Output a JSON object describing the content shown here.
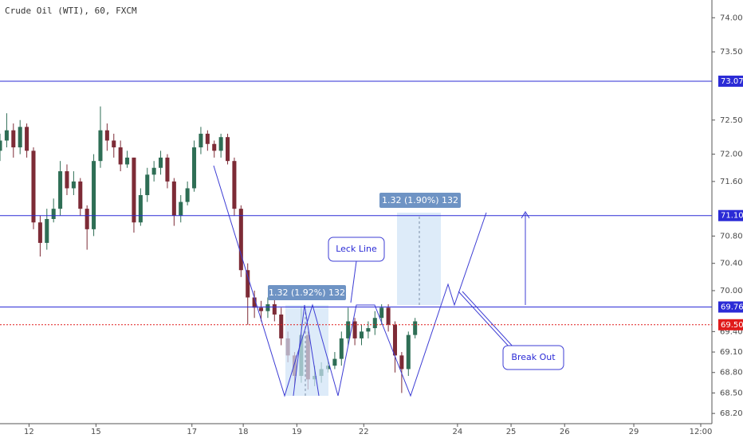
{
  "chart_data": {
    "type": "candlestick",
    "title": "Crude Oil (WTI), 60, FXCM",
    "up_color": "#2e6e55",
    "down_color": "#7d2b36",
    "ylim": [
      68.05,
      74.26
    ],
    "xlim": [
      0,
      319
    ],
    "yticks": [
      {
        "value": 74.0,
        "label": "74.00"
      },
      {
        "value": 73.5,
        "label": "73.50"
      },
      {
        "value": 72.5,
        "label": "72.50"
      },
      {
        "value": 72.0,
        "label": "72.00"
      },
      {
        "value": 71.6,
        "label": "71.60"
      },
      {
        "value": 70.8,
        "label": "70.80"
      },
      {
        "value": 70.4,
        "label": "70.40"
      },
      {
        "value": 70.0,
        "label": "70.00"
      },
      {
        "value": 69.4,
        "label": "69.40"
      },
      {
        "value": 69.1,
        "label": "69.10"
      },
      {
        "value": 68.8,
        "label": "68.80"
      },
      {
        "value": 68.5,
        "label": "68.50"
      },
      {
        "value": 68.2,
        "label": "68.20"
      }
    ],
    "xticks": [
      {
        "value": 13,
        "label": "12"
      },
      {
        "value": 43,
        "label": "15"
      },
      {
        "value": 86,
        "label": "17"
      },
      {
        "value": 109,
        "label": "18"
      },
      {
        "value": 133,
        "label": "19"
      },
      {
        "value": 163,
        "label": "22"
      },
      {
        "value": 205,
        "label": "24"
      },
      {
        "value": 229,
        "label": "25"
      },
      {
        "value": 253,
        "label": "26"
      },
      {
        "value": 284,
        "label": "29"
      },
      {
        "value": 314,
        "label": "12:00"
      }
    ],
    "levels": [
      {
        "value": 73.07,
        "label": "73.07",
        "color": "#2b2bd6",
        "style": "solid"
      },
      {
        "value": 71.1,
        "label": "71.10",
        "color": "#2b2bd6",
        "style": "solid"
      },
      {
        "value": 69.76,
        "label": "69.76",
        "color": "#2b2bd6",
        "style": "solid"
      },
      {
        "value": 69.5,
        "label": "69.50",
        "color": "#e01b1b",
        "style": "dotted"
      }
    ],
    "x": [
      0,
      3,
      6,
      9,
      12,
      15,
      18,
      21,
      24,
      27,
      30,
      33,
      36,
      39,
      42,
      45,
      48,
      51,
      54,
      57,
      60,
      63,
      66,
      69,
      72,
      75,
      78,
      81,
      84,
      87,
      90,
      93,
      96,
      99,
      102,
      105,
      108,
      111,
      114,
      117,
      120,
      123,
      126,
      129,
      132,
      135,
      138,
      141,
      144,
      147,
      150,
      153,
      156,
      159,
      162,
      165,
      168,
      171,
      174,
      177,
      180,
      183,
      186
    ],
    "open": [
      72.05,
      72.2,
      72.35,
      72.1,
      72.4,
      72.05,
      71.0,
      70.7,
      71.05,
      71.2,
      71.75,
      71.5,
      71.6,
      71.2,
      70.9,
      71.9,
      72.35,
      72.2,
      72.1,
      71.85,
      71.95,
      71.0,
      71.4,
      71.7,
      71.8,
      71.95,
      71.6,
      71.1,
      71.3,
      71.5,
      72.1,
      72.3,
      72.15,
      72.05,
      72.25,
      71.9,
      71.2,
      70.3,
      69.9,
      69.75,
      69.7,
      69.8,
      69.65,
      69.3,
      69.05,
      68.75,
      69.35,
      68.7,
      68.75,
      68.85,
      68.9,
      69.0,
      69.3,
      69.55,
      69.3,
      69.4,
      69.45,
      69.6,
      69.75,
      69.5,
      69.05,
      68.85,
      69.35
    ],
    "high": [
      72.3,
      72.6,
      72.45,
      72.5,
      72.45,
      72.1,
      71.1,
      71.2,
      71.35,
      71.9,
      71.85,
      71.75,
      71.65,
      71.25,
      72.0,
      72.7,
      72.45,
      72.3,
      72.2,
      72.05,
      71.95,
      71.5,
      71.8,
      71.9,
      72.05,
      72.0,
      71.65,
      71.4,
      71.6,
      72.2,
      72.4,
      72.35,
      72.2,
      72.3,
      72.3,
      71.95,
      71.25,
      70.4,
      70.0,
      69.85,
      69.9,
      69.9,
      69.75,
      69.4,
      69.1,
      69.75,
      69.4,
      68.9,
      68.95,
      69.0,
      69.1,
      69.4,
      69.75,
      69.6,
      69.5,
      69.55,
      69.7,
      69.8,
      69.8,
      69.55,
      69.1,
      69.4,
      69.6
    ],
    "low": [
      71.9,
      72.1,
      71.95,
      72.0,
      71.95,
      70.9,
      70.5,
      70.6,
      71.0,
      71.1,
      71.4,
      71.4,
      71.1,
      70.6,
      70.8,
      71.8,
      72.05,
      71.95,
      71.75,
      71.8,
      70.85,
      70.95,
      71.3,
      71.6,
      71.7,
      71.5,
      70.95,
      71.0,
      71.25,
      71.45,
      72.0,
      72.05,
      71.95,
      71.95,
      71.85,
      71.1,
      70.2,
      69.5,
      69.6,
      69.55,
      69.6,
      69.55,
      69.2,
      68.95,
      68.6,
      68.65,
      68.55,
      68.6,
      68.65,
      68.8,
      68.85,
      68.9,
      69.2,
      69.2,
      69.2,
      69.3,
      69.35,
      69.5,
      69.4,
      68.8,
      68.5,
      68.75,
      69.3
    ],
    "close": [
      72.2,
      72.35,
      72.1,
      72.4,
      72.05,
      71.0,
      70.7,
      71.05,
      71.2,
      71.75,
      71.5,
      71.6,
      71.2,
      70.9,
      71.9,
      72.35,
      72.2,
      72.1,
      71.85,
      71.95,
      71.0,
      71.4,
      71.7,
      71.8,
      71.95,
      71.6,
      71.1,
      71.3,
      71.5,
      72.1,
      72.3,
      72.15,
      72.05,
      72.25,
      71.9,
      71.2,
      70.3,
      69.9,
      69.75,
      69.7,
      69.8,
      69.65,
      69.3,
      69.05,
      68.75,
      69.35,
      68.7,
      68.75,
      68.85,
      68.9,
      69.0,
      69.3,
      69.55,
      69.3,
      69.4,
      69.45,
      69.6,
      69.75,
      69.5,
      69.05,
      68.85,
      69.35,
      69.55
    ],
    "annotations": {
      "measure_1": "1.32 (1.92%) 132",
      "measure_2": "1.32 (1.90%) 132",
      "leck_line": "Leck Line",
      "break_out": "Break Out"
    }
  }
}
